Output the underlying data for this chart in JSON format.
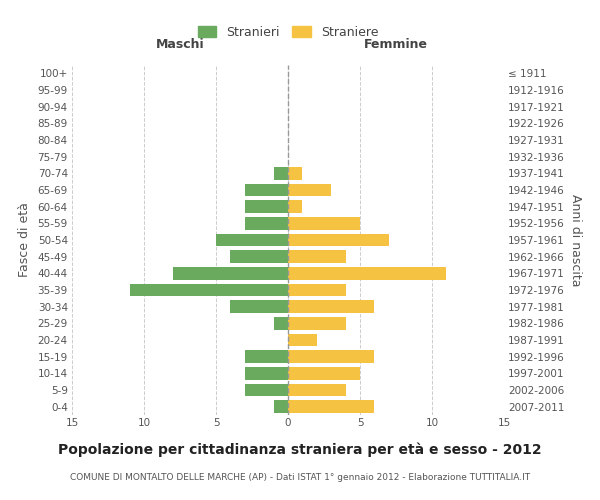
{
  "age_groups": [
    "100+",
    "95-99",
    "90-94",
    "85-89",
    "80-84",
    "75-79",
    "70-74",
    "65-69",
    "60-64",
    "55-59",
    "50-54",
    "45-49",
    "40-44",
    "35-39",
    "30-34",
    "25-29",
    "20-24",
    "15-19",
    "10-14",
    "5-9",
    "0-4"
  ],
  "birth_years": [
    "≤ 1911",
    "1912-1916",
    "1917-1921",
    "1922-1926",
    "1927-1931",
    "1932-1936",
    "1937-1941",
    "1942-1946",
    "1947-1951",
    "1952-1956",
    "1957-1961",
    "1962-1966",
    "1967-1971",
    "1972-1976",
    "1977-1981",
    "1982-1986",
    "1987-1991",
    "1992-1996",
    "1997-2001",
    "2002-2006",
    "2007-2011"
  ],
  "males": [
    0,
    0,
    0,
    0,
    0,
    0,
    1,
    3,
    3,
    3,
    5,
    4,
    8,
    11,
    4,
    1,
    0,
    3,
    3,
    3,
    1
  ],
  "females": [
    0,
    0,
    0,
    0,
    0,
    0,
    1,
    3,
    1,
    5,
    7,
    4,
    11,
    4,
    6,
    4,
    2,
    6,
    5,
    4,
    6
  ],
  "male_color": "#6aaa5e",
  "female_color": "#f5c242",
  "background_color": "#ffffff",
  "grid_color": "#cccccc",
  "title": "Popolazione per cittadinanza straniera per età e sesso - 2012",
  "subtitle": "COMUNE DI MONTALTO DELLE MARCHE (AP) - Dati ISTAT 1° gennaio 2012 - Elaborazione TUTTITALIA.IT",
  "xlabel_left": "Maschi",
  "xlabel_right": "Femmine",
  "ylabel_left": "Fasce di età",
  "ylabel_right": "Anni di nascita",
  "legend_male": "Stranieri",
  "legend_female": "Straniere",
  "xlim": 15,
  "title_fontsize": 10,
  "subtitle_fontsize": 6.5,
  "label_fontsize": 9,
  "tick_fontsize": 7.5,
  "bar_height": 0.75
}
